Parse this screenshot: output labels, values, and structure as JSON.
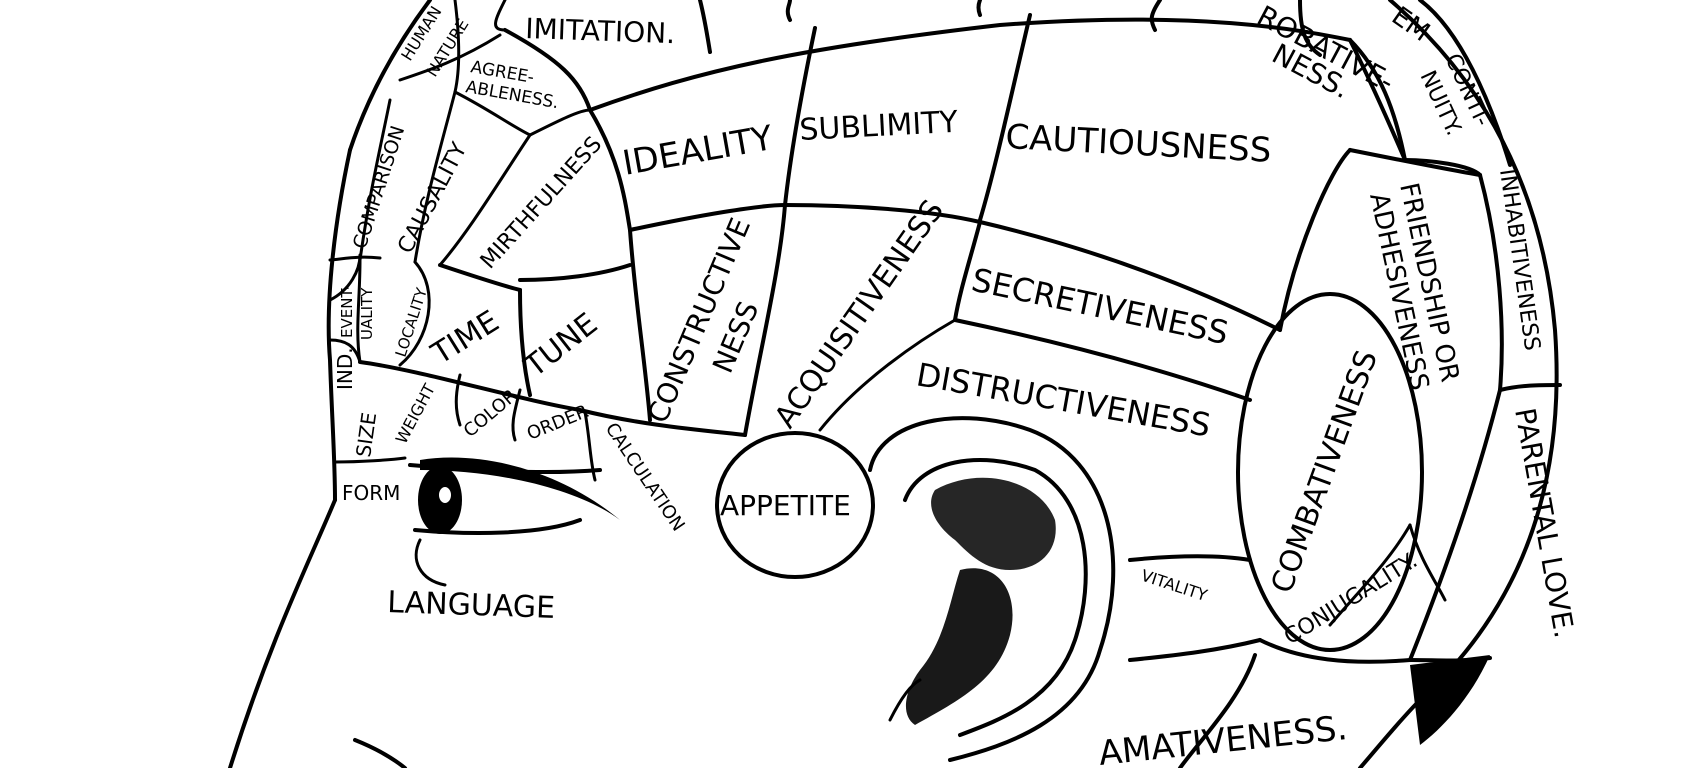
{
  "labels": {
    "imitation": "IMITATION.",
    "human_nature_1": "HUMAN",
    "human_nature_2": "NATURE",
    "agreeableness_1": "AGREE-",
    "agreeableness_2": "ABLENESS.",
    "comparison": "COMPARISON",
    "causality": "CAUSALITY",
    "mirthfulness": "MIRTHFULNESS",
    "eventuality_1": "EVENT-",
    "eventuality_2": "UALITY",
    "locality": "LOCALITY",
    "time": "TIME",
    "tune": "TUNE",
    "individuality": "IND.",
    "size": "SIZE",
    "weight": "WEIGHT",
    "color": "COLOR",
    "order": "ORDER",
    "calculation": "CALCULATION",
    "form": "FORM",
    "language": "LANGUAGE",
    "ideality": "IDEALITY",
    "sublimity": "SUBLIMITY",
    "cautiousness": "CAUTIOUSNESS",
    "constructiveness_1": "CONSTRUCTIVE",
    "constructiveness_2": "NESS",
    "acquisitiveness": "ACQUISITIVENESS",
    "secretiveness": "SECRETIVENESS",
    "distructiveness": "DISTRUCTIVENESS",
    "appetite": "APPETITE",
    "vitality": "VITALITY",
    "combativeness": "COMBATIVENESS",
    "approbativeness_1": "ROBATIVE-",
    "approbativeness_2": "NESS.",
    "self_esteem": "EM",
    "continuity_1": "CONTI-",
    "continuity_2": "NUITY.",
    "inhabitiveness": "INHABITIVENESS",
    "friendship_1": "FRIENDSHIP OR",
    "friendship_2": "ADHESIVENESS",
    "parental_love": "PARENTAL LOVE.",
    "conjugality": "CONJUGALITY.",
    "amativeness": "AMATIVENESS."
  }
}
